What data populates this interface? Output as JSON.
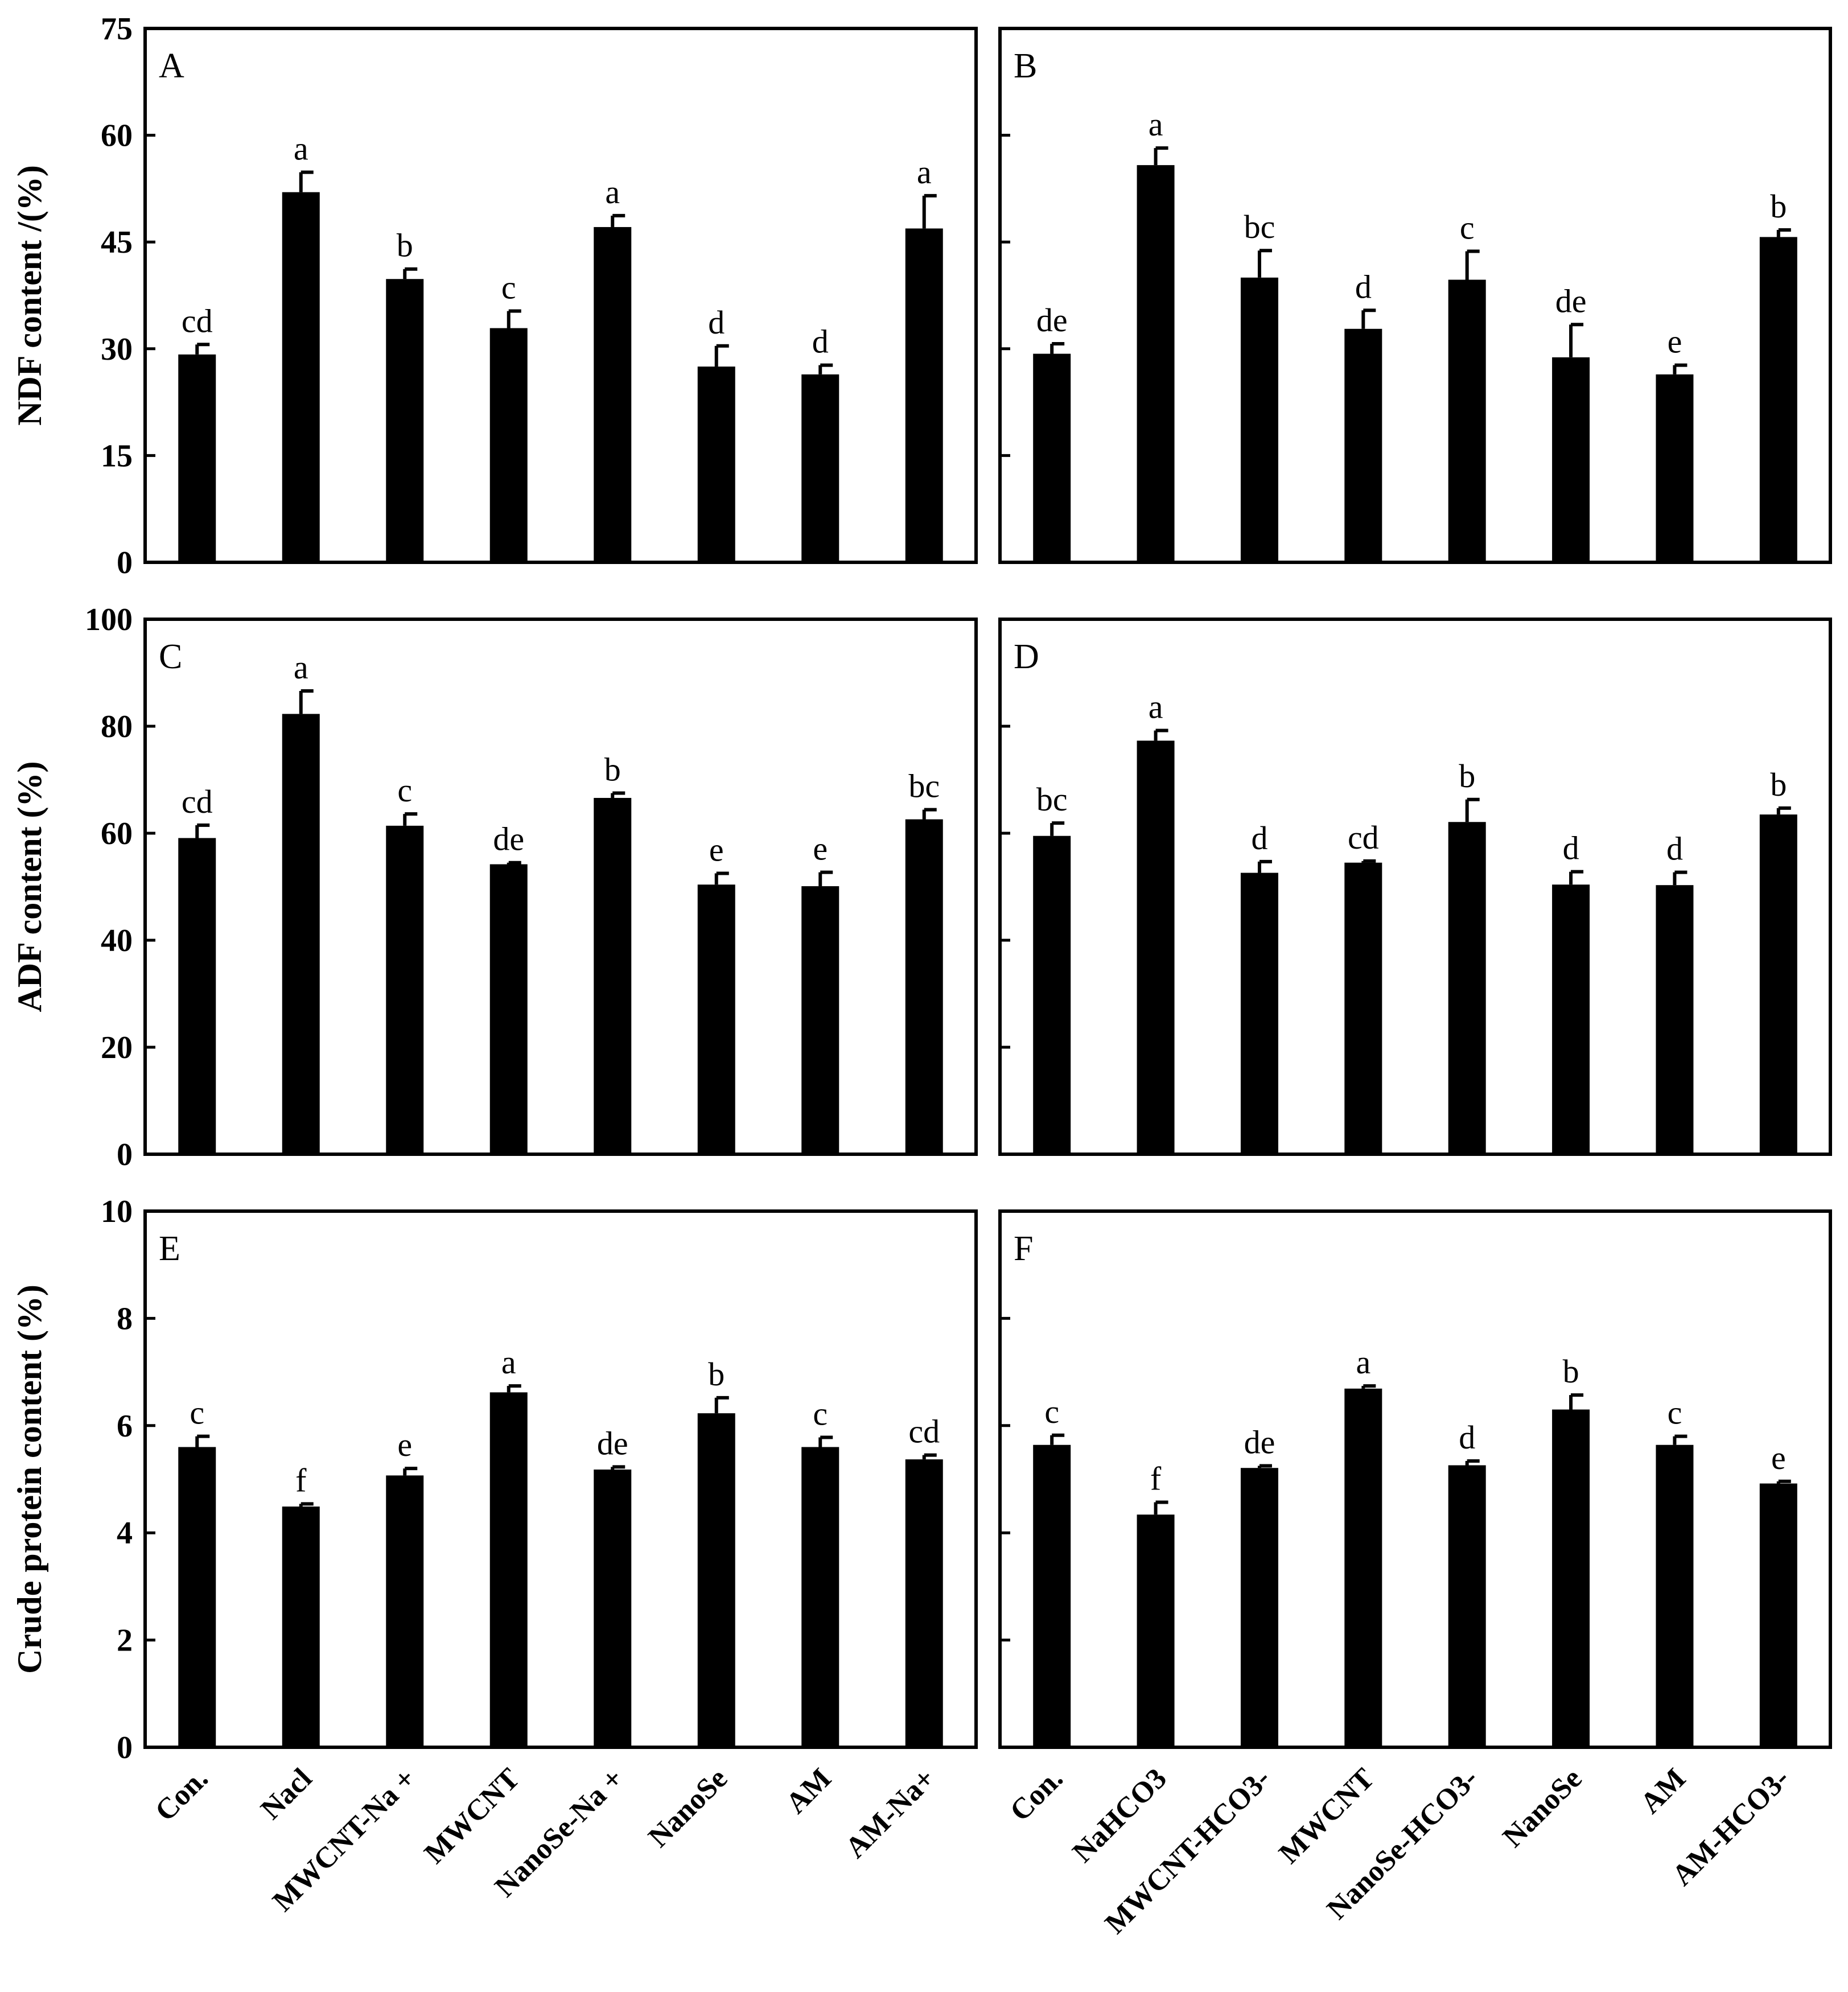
{
  "chart_data": [
    {
      "type": "bar",
      "panel": "A",
      "ylabel": "NDF content /(%)",
      "ylim": [
        0,
        75
      ],
      "yticks": [
        0,
        15,
        30,
        45,
        60,
        75
      ],
      "categories": [
        "Con.",
        "Nacl",
        "MWCNT-Na +",
        "MWCNT",
        "NanoSe-Na +",
        "NanoSe",
        "AM",
        "AM-Na+"
      ],
      "values": [
        29.2,
        52.0,
        39.8,
        32.9,
        47.1,
        27.5,
        26.4,
        46.9
      ],
      "errors": [
        1.4,
        2.8,
        1.4,
        2.4,
        1.6,
        2.9,
        1.3,
        4.6
      ],
      "labels": [
        "cd",
        "a",
        "b",
        "c",
        "a",
        "d",
        "d",
        "a"
      ]
    },
    {
      "type": "bar",
      "panel": "B",
      "ylabel": "",
      "ylim": [
        0,
        75
      ],
      "yticks": [
        0,
        15,
        30,
        45,
        60,
        75
      ],
      "categories": [
        "Con.",
        "NaHCO3",
        "MWCNT-HCO3-",
        "MWCNT",
        "NanoSe-HCO3-",
        "NanoSe",
        "AM",
        "AM-HCO3-"
      ],
      "values": [
        29.3,
        55.8,
        40.0,
        32.8,
        39.7,
        28.8,
        26.4,
        45.7
      ],
      "errors": [
        1.4,
        2.4,
        3.8,
        2.6,
        4.0,
        4.6,
        1.3,
        1.0
      ],
      "labels": [
        "de",
        "a",
        "bc",
        "d",
        "c",
        "de",
        "e",
        "b"
      ]
    },
    {
      "type": "bar",
      "panel": "C",
      "ylabel": "ADF content (%)",
      "ylim": [
        0,
        100
      ],
      "yticks": [
        0,
        20,
        40,
        60,
        80,
        100
      ],
      "categories": [
        "Con.",
        "Nacl",
        "MWCNT-Na +",
        "MWCNT",
        "NanoSe-Na +",
        "NanoSe",
        "AM",
        "AM-Na+"
      ],
      "values": [
        59.1,
        82.3,
        61.4,
        54.2,
        66.6,
        50.4,
        50.1,
        62.6
      ],
      "errors": [
        2.4,
        4.3,
        2.2,
        0.3,
        0.9,
        2.1,
        2.6,
        1.8
      ],
      "labels": [
        "cd",
        "a",
        "c",
        "de",
        "b",
        "e",
        "e",
        "bc"
      ]
    },
    {
      "type": "bar",
      "panel": "D",
      "ylabel": "",
      "ylim": [
        0,
        100
      ],
      "yticks": [
        0,
        20,
        40,
        60,
        80,
        100
      ],
      "categories": [
        "Con.",
        "NaHCO3",
        "MWCNT-HCO3-",
        "MWCNT",
        "NanoSe-HCO3-",
        "NanoSe",
        "AM",
        "AM-HCO3-"
      ],
      "values": [
        59.5,
        77.3,
        52.6,
        54.5,
        62.1,
        50.4,
        50.3,
        63.5
      ],
      "errors": [
        2.4,
        1.9,
        2.1,
        0.3,
        4.2,
        2.4,
        2.4,
        1.2
      ],
      "labels": [
        "bc",
        "a",
        "d",
        "cd",
        "b",
        "d",
        "d",
        "b"
      ]
    },
    {
      "type": "bar",
      "panel": "E",
      "ylabel": "Crude protein content (%)",
      "ylim": [
        0,
        10
      ],
      "yticks": [
        0,
        2,
        4,
        6,
        8,
        10
      ],
      "categories": [
        "Con.",
        "Nacl",
        "MWCNT-Na +",
        "MWCNT",
        "NanoSe-Na +",
        "NanoSe",
        "AM",
        "AM-Na+"
      ],
      "values": [
        5.6,
        4.49,
        5.07,
        6.62,
        5.18,
        6.23,
        5.6,
        5.37
      ],
      "errors": [
        0.2,
        0.05,
        0.13,
        0.12,
        0.05,
        0.29,
        0.18,
        0.08
      ],
      "labels": [
        "c",
        "f",
        "e",
        "a",
        "de",
        "b",
        "c",
        "cd"
      ]
    },
    {
      "type": "bar",
      "panel": "F",
      "ylabel": "",
      "ylim": [
        0,
        10
      ],
      "yticks": [
        0,
        2,
        4,
        6,
        8,
        10
      ],
      "categories": [
        "Con.",
        "NaHCO3",
        "MWCNT-HCO3-",
        "MWCNT",
        "NanoSe-HCO3-",
        "NanoSe",
        "AM",
        "AM-HCO3-"
      ],
      "values": [
        5.64,
        4.34,
        5.21,
        6.69,
        5.26,
        6.3,
        5.64,
        4.92
      ],
      "errors": [
        0.18,
        0.23,
        0.04,
        0.05,
        0.08,
        0.27,
        0.16,
        0.04
      ],
      "labels": [
        "c",
        "f",
        "de",
        "a",
        "d",
        "b",
        "c",
        "e"
      ]
    }
  ]
}
